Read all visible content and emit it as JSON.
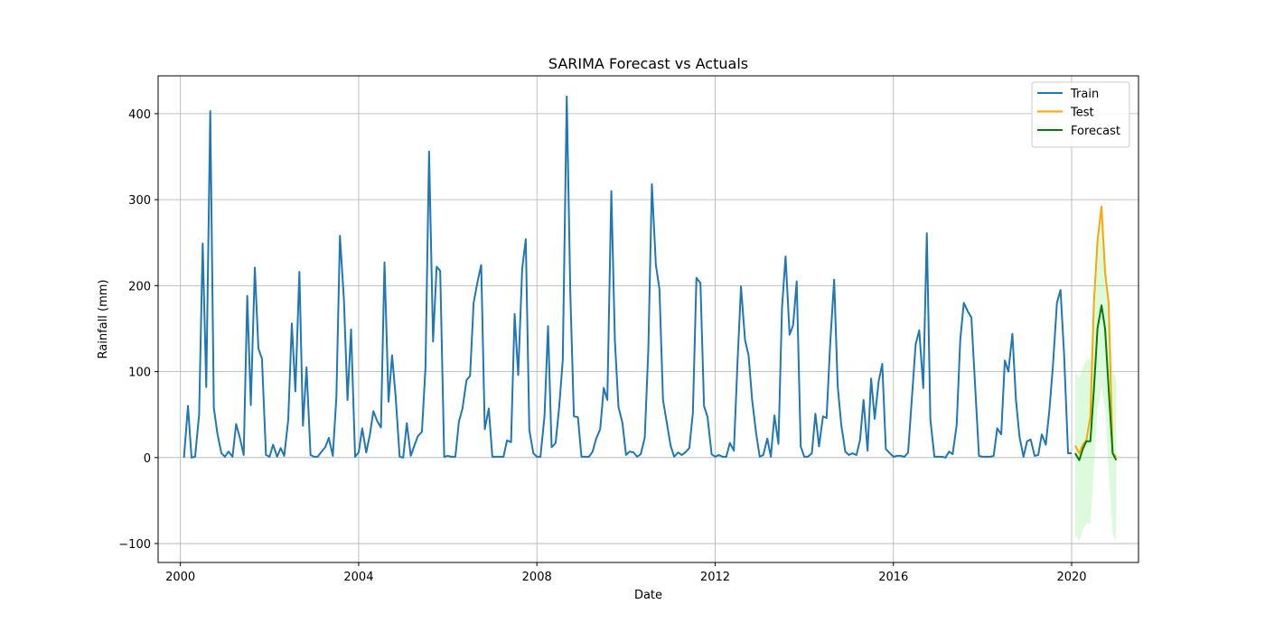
{
  "chart_data": {
    "type": "line",
    "title": "SARIMA Forecast vs Actuals",
    "xlabel": "Date",
    "ylabel": "Rainfall (mm)",
    "xlim": [
      1999.5,
      2021.5
    ],
    "ylim": [
      -122,
      444
    ],
    "x_ticks": [
      2000,
      2004,
      2008,
      2012,
      2016,
      2020
    ],
    "x_tick_labels": [
      "2000",
      "2004",
      "2008",
      "2012",
      "2016",
      "2020"
    ],
    "y_ticks": [
      -100,
      0,
      100,
      200,
      300,
      400
    ],
    "y_tick_labels": [
      "−100",
      "0",
      "100",
      "200",
      "300",
      "400"
    ],
    "grid": true,
    "legend_position": "top-right",
    "series": [
      {
        "name": "Train",
        "color": "#1f77b4",
        "x": [
          2000.08,
          2000.17,
          2000.25,
          2000.33,
          2000.42,
          2000.5,
          2000.58,
          2000.67,
          2000.75,
          2000.83,
          2000.92,
          2001.0,
          2001.08,
          2001.17,
          2001.25,
          2001.33,
          2001.42,
          2001.5,
          2001.58,
          2001.67,
          2001.75,
          2001.83,
          2001.92,
          2002.0,
          2002.08,
          2002.17,
          2002.25,
          2002.33,
          2002.42,
          2002.5,
          2002.58,
          2002.67,
          2002.75,
          2002.83,
          2002.92,
          2003.0,
          2003.08,
          2003.17,
          2003.25,
          2003.33,
          2003.42,
          2003.5,
          2003.58,
          2003.67,
          2003.75,
          2003.83,
          2003.92,
          2004.0,
          2004.08,
          2004.17,
          2004.25,
          2004.33,
          2004.42,
          2004.5,
          2004.58,
          2004.67,
          2004.75,
          2004.83,
          2004.92,
          2005.0,
          2005.08,
          2005.17,
          2005.25,
          2005.33,
          2005.42,
          2005.5,
          2005.58,
          2005.67,
          2005.75,
          2005.83,
          2005.92,
          2006.0,
          2006.08,
          2006.17,
          2006.25,
          2006.33,
          2006.42,
          2006.5,
          2006.58,
          2006.67,
          2006.75,
          2006.83,
          2006.92,
          2007.0,
          2007.08,
          2007.17,
          2007.25,
          2007.33,
          2007.42,
          2007.5,
          2007.58,
          2007.67,
          2007.75,
          2007.83,
          2007.92,
          2008.0,
          2008.08,
          2008.17,
          2008.25,
          2008.33,
          2008.42,
          2008.5,
          2008.58,
          2008.67,
          2008.75,
          2008.83,
          2008.92,
          2009.0,
          2009.08,
          2009.17,
          2009.25,
          2009.33,
          2009.42,
          2009.5,
          2009.58,
          2009.67,
          2009.75,
          2009.83,
          2009.92,
          2010.0,
          2010.08,
          2010.17,
          2010.25,
          2010.33,
          2010.42,
          2010.5,
          2010.58,
          2010.67,
          2010.75,
          2010.83,
          2010.92,
          2011.0,
          2011.08,
          2011.17,
          2011.25,
          2011.33,
          2011.42,
          2011.5,
          2011.58,
          2011.67,
          2011.75,
          2011.83,
          2011.92,
          2012.0,
          2012.08,
          2012.17,
          2012.25,
          2012.33,
          2012.42,
          2012.5,
          2012.58,
          2012.67,
          2012.75,
          2012.83,
          2012.92,
          2013.0,
          2013.08,
          2013.17,
          2013.25,
          2013.33,
          2013.42,
          2013.5,
          2013.58,
          2013.67,
          2013.75,
          2013.83,
          2013.92,
          2014.0,
          2014.08,
          2014.17,
          2014.25,
          2014.33,
          2014.42,
          2014.5,
          2014.58,
          2014.67,
          2014.75,
          2014.83,
          2014.92,
          2015.0,
          2015.08,
          2015.17,
          2015.25,
          2015.33,
          2015.42,
          2015.5,
          2015.58,
          2015.67,
          2015.75,
          2015.83,
          2015.92,
          2016.0,
          2016.08,
          2016.17,
          2016.25,
          2016.33,
          2016.42,
          2016.5,
          2016.58,
          2016.67,
          2016.75,
          2016.83,
          2016.92,
          2017.0,
          2017.08,
          2017.17,
          2017.25,
          2017.33,
          2017.42,
          2017.5,
          2017.58,
          2017.67,
          2017.75,
          2017.83,
          2017.92,
          2018.0,
          2018.08,
          2018.17,
          2018.25,
          2018.33,
          2018.42,
          2018.5,
          2018.58,
          2018.67,
          2018.75,
          2018.83,
          2018.92,
          2019.0,
          2019.08,
          2019.17,
          2019.25,
          2019.33,
          2019.42,
          2019.5,
          2019.58,
          2019.67,
          2019.75,
          2019.83,
          2019.92,
          2020.0
        ],
        "values": [
          0,
          60,
          0,
          1,
          50,
          249,
          82,
          403,
          58,
          28,
          5,
          1,
          7,
          1,
          39,
          24,
          3,
          188,
          61,
          221,
          127,
          115,
          3,
          1,
          15,
          1,
          11,
          2,
          44,
          156,
          77,
          216,
          37,
          105,
          3,
          1,
          1,
          7,
          12,
          23,
          2,
          70,
          258,
          183,
          67,
          149,
          1,
          6,
          34,
          6,
          26,
          54,
          42,
          35,
          227,
          65,
          119,
          71,
          1,
          0,
          40,
          2,
          14,
          25,
          30,
          105,
          356,
          135,
          222,
          217,
          1,
          2,
          1,
          1,
          42,
          57,
          90,
          95,
          180,
          205,
          224,
          33,
          57,
          1,
          1,
          1,
          1,
          20,
          18,
          167,
          96,
          220,
          254,
          32,
          5,
          1,
          1,
          48,
          153,
          12,
          17,
          59,
          113,
          420,
          191,
          48,
          47,
          1,
          1,
          1,
          7,
          22,
          33,
          81,
          67,
          310,
          136,
          59,
          40,
          3,
          7,
          6,
          1,
          4,
          23,
          125,
          318,
          224,
          196,
          67,
          39,
          14,
          1,
          6,
          3,
          6,
          11,
          52,
          209,
          203,
          60,
          47,
          4,
          1,
          3,
          1,
          1,
          17,
          8,
          109,
          199,
          137,
          119,
          67,
          28,
          1,
          3,
          22,
          1,
          49,
          16,
          174,
          234,
          143,
          154,
          205,
          13,
          1,
          1,
          5,
          51,
          13,
          48,
          46,
          131,
          207,
          83,
          38,
          7,
          3,
          5,
          3,
          20,
          67,
          8,
          92,
          45,
          89,
          109,
          10,
          5,
          1,
          2,
          2,
          1,
          6,
          73,
          132,
          148,
          81,
          261,
          44,
          1,
          1,
          1,
          0,
          7,
          4,
          38,
          137,
          180,
          170,
          163,
          87,
          2,
          1,
          1,
          1,
          2,
          34,
          27,
          113,
          100,
          144,
          67,
          24,
          1,
          19,
          21,
          2,
          3,
          27,
          15,
          55,
          107,
          180,
          195,
          120,
          5,
          5
        ]
      },
      {
        "name": "Test",
        "color": "#ffa500",
        "x": [
          2020.08,
          2020.17,
          2020.25,
          2020.33,
          2020.42,
          2020.5,
          2020.58,
          2020.67,
          2020.75,
          2020.83,
          2020.92,
          2021.0
        ],
        "values": [
          14,
          5,
          15,
          20,
          48,
          180,
          252,
          292,
          215,
          180,
          5,
          1
        ]
      },
      {
        "name": "Forecast",
        "color": "#008000",
        "x": [
          2020.08,
          2020.17,
          2020.25,
          2020.33,
          2020.42,
          2020.5,
          2020.58,
          2020.67,
          2020.75,
          2020.83,
          2020.92,
          2021.0
        ],
        "values": [
          5,
          -3,
          10,
          19,
          19,
          80,
          150,
          177,
          150,
          80,
          5,
          -3
        ],
        "ci_lower": [
          -90,
          -97,
          -85,
          -76,
          -77,
          -15,
          55,
          82,
          55,
          -15,
          -90,
          -97
        ],
        "ci_upper": [
          100,
          93,
          105,
          114,
          115,
          175,
          245,
          272,
          245,
          175,
          100,
          93
        ],
        "ci_color": "#90ee90"
      }
    ]
  }
}
